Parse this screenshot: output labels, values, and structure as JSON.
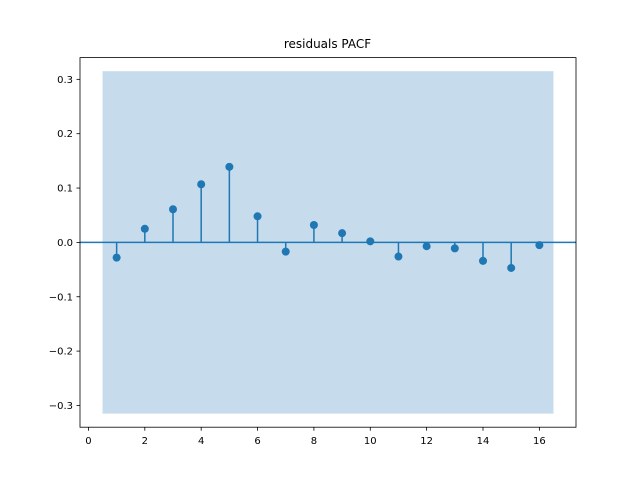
{
  "chart_data": {
    "type": "stem",
    "title": "residuals PACF",
    "xlabel": "",
    "ylabel": "",
    "xlim": [
      -0.3,
      17.3
    ],
    "ylim": [
      -0.34,
      0.34
    ],
    "x_ticks": [
      0,
      2,
      4,
      6,
      8,
      10,
      12,
      14,
      16
    ],
    "y_ticks": [
      0.3,
      0.2,
      0.1,
      0.0,
      -0.1,
      -0.2,
      -0.3
    ],
    "y_tick_labels": [
      "0.3",
      "0.2",
      "0.1",
      "0.0",
      "−0.1",
      "−0.2",
      "−0.3"
    ],
    "confidence_band": {
      "x": [
        0.5,
        16.5
      ],
      "y": [
        -0.315,
        0.315
      ],
      "color": "#c6dbec"
    },
    "baseline": 0,
    "series": [
      {
        "color": "#1f77b4",
        "lags": [
          1,
          2,
          3,
          4,
          5,
          6,
          7,
          8,
          9,
          10,
          11,
          12,
          13,
          14,
          15,
          16
        ],
        "values": [
          -0.028,
          0.025,
          0.061,
          0.107,
          0.139,
          0.048,
          -0.017,
          0.032,
          0.017,
          0.002,
          -0.026,
          -0.007,
          -0.011,
          -0.034,
          -0.047,
          -0.005
        ]
      }
    ],
    "grid": false
  }
}
